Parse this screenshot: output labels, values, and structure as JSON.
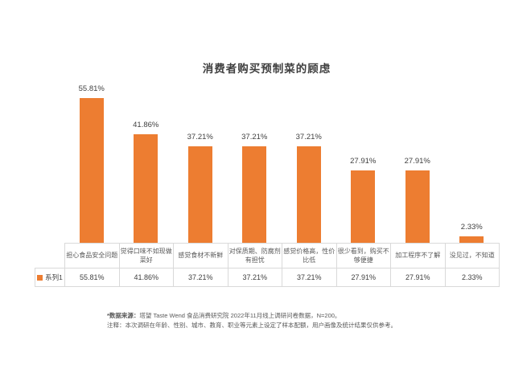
{
  "title": "消费者购买预制菜的顾虑",
  "chart_data": {
    "type": "bar",
    "title": "消费者购买预制菜的顾虑",
    "categories": [
      "担心食品安全问题",
      "觉得口味不如现做菜好",
      "感觉食材不新鲜",
      "对保质期、防腐剂有担忧",
      "感觉价格高，性价比低",
      "很少看到，购买不够便捷",
      "加工程序不了解",
      "没见过，不知道"
    ],
    "series": [
      {
        "name": "系列1",
        "values": [
          55.81,
          41.86,
          37.21,
          37.21,
          37.21,
          27.91,
          27.91,
          2.33
        ]
      }
    ],
    "value_labels": [
      "55.81%",
      "41.86%",
      "37.21%",
      "37.21%",
      "37.21%",
      "27.91%",
      "27.91%",
      "2.33%"
    ],
    "ylim": [
      0,
      60
    ],
    "grid": false,
    "legend_position": "data-table-left",
    "data_table_shown": true,
    "bar_color": "#ED7D31",
    "border_color": "#D9D9D9"
  },
  "footer": {
    "source_label": "*数据来源：",
    "source_text": "塔望 Taste Wend 食品消费研究院 2022年11月线上调研问卷数据，N=200。",
    "note_text": "注释：本次调研在年龄、性别、城市、教育、职业等元素上设定了样本配额，用户画像及统计结果仅供参考。"
  }
}
